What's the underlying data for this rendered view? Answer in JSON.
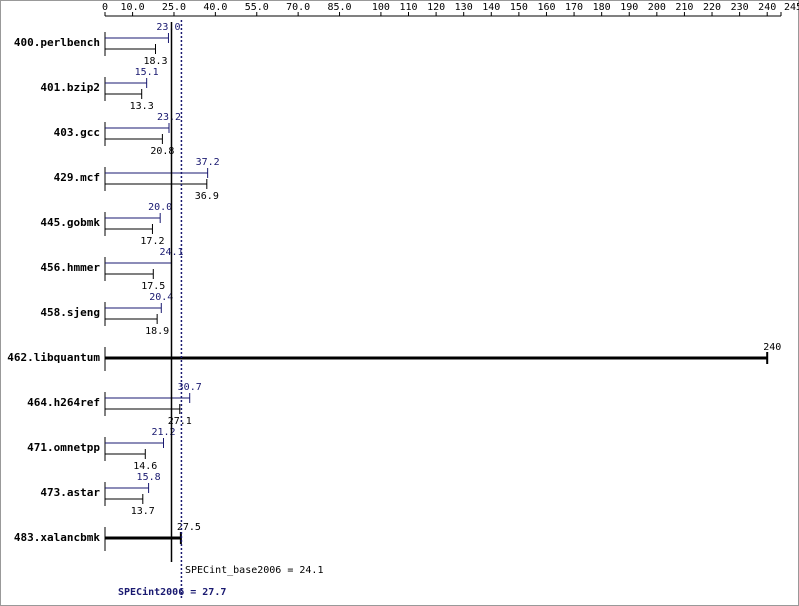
{
  "chart_data": {
    "type": "bar",
    "orientation": "horizontal",
    "categories": [
      "400.perlbench",
      "401.bzip2",
      "403.gcc",
      "429.mcf",
      "445.gobmk",
      "456.hmmer",
      "458.sjeng",
      "462.libquantum",
      "464.h264ref",
      "471.omnetpp",
      "473.astar",
      "483.xalancbmk"
    ],
    "series": [
      {
        "color": "#191970",
        "values": [
          23.0,
          15.1,
          23.2,
          37.2,
          20.0,
          24.1,
          20.4,
          null,
          30.7,
          21.2,
          15.8,
          null
        ],
        "value_labels": [
          "23.0",
          "15.1",
          "23.2",
          "37.2",
          "20.0",
          "24.1",
          "20.4",
          null,
          "30.7",
          "21.2",
          "15.8",
          null
        ]
      },
      {
        "color": "#000000",
        "values": [
          18.3,
          13.3,
          20.8,
          36.9,
          17.2,
          17.5,
          18.9,
          240,
          27.1,
          14.6,
          13.7,
          27.5
        ],
        "value_labels": [
          "18.3",
          "13.3",
          "20.8",
          "36.9",
          "17.2",
          "17.5",
          "18.9",
          "240",
          "27.1",
          "14.6",
          "13.7",
          "27.5"
        ]
      }
    ],
    "xlim": [
      0,
      245
    ],
    "xticks": [
      0,
      {
        "value": 10,
        "label": "10.0"
      },
      {
        "value": 25,
        "label": "25.0"
      },
      {
        "value": 40,
        "label": "40.0"
      },
      {
        "value": 55,
        "label": "55.0"
      },
      {
        "value": 70,
        "label": "70.0"
      },
      {
        "value": 85,
        "label": "85.0"
      },
      100,
      110,
      120,
      130,
      140,
      150,
      160,
      170,
      180,
      190,
      200,
      210,
      220,
      230,
      240,
      245
    ],
    "annotations": [
      {
        "label": "SPECint_base2006 = 24.1",
        "value": 24.1,
        "color": "#000000"
      },
      {
        "label": "SPECint2006 = 27.7",
        "value": 27.7,
        "color": "#191970"
      }
    ]
  }
}
